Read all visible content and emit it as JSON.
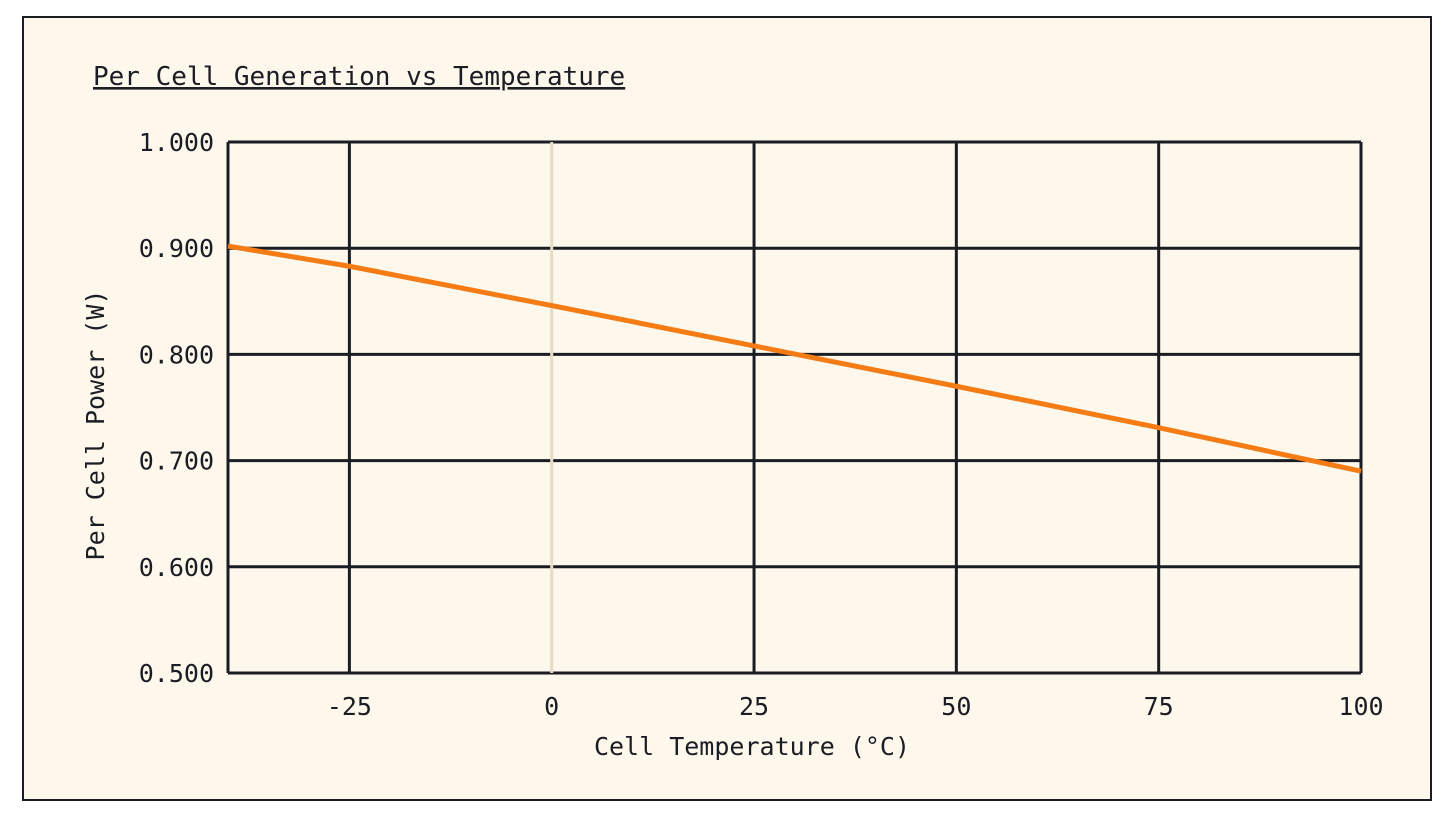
{
  "chart_data": {
    "type": "line",
    "title": "Per Cell Generation vs Temperature",
    "xlabel": "Cell Temperature (°C)",
    "ylabel": "Per Cell Power (W)",
    "xlim": [
      -40,
      100
    ],
    "ylim": [
      0.5,
      1.0
    ],
    "x_ticks": [
      -25,
      0,
      25,
      50,
      75,
      100
    ],
    "x_tick_labels": [
      "-25",
      "0",
      "25",
      "50",
      "75",
      "100"
    ],
    "y_ticks": [
      0.5,
      0.6,
      0.7,
      0.8,
      0.9,
      1.0
    ],
    "y_tick_labels": [
      "0.500",
      "0.600",
      "0.700",
      "0.800",
      "0.900",
      "1.000"
    ],
    "grid": true,
    "highlight_x": 0,
    "series": [
      {
        "name": "Per Cell Power",
        "color": "#f57c14",
        "x": [
          -40,
          -25,
          0,
          25,
          50,
          75,
          100
        ],
        "y": [
          0.902,
          0.883,
          0.846,
          0.808,
          0.77,
          0.731,
          0.69
        ]
      }
    ]
  },
  "colors": {
    "background": "#fdf7ec",
    "grid": "#1b1d24",
    "zero_line": "#e6dcc4",
    "line": "#f57c14"
  }
}
